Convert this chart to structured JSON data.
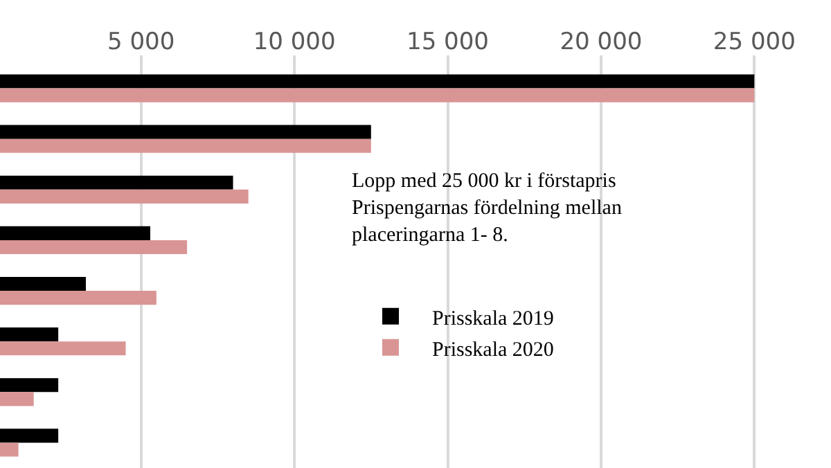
{
  "chart_data": {
    "type": "bar",
    "orientation": "horizontal",
    "categories": [
      null,
      null,
      null,
      null,
      null,
      null,
      null,
      null
    ],
    "series": [
      {
        "name": "Prisskala 2019",
        "color": "#000000",
        "values": [
          25000,
          12500,
          8000,
          5300,
          3200,
          2300,
          2300,
          2300
        ]
      },
      {
        "name": "Prisskala 2020",
        "color": "#d99594",
        "values": [
          25000,
          12500,
          8500,
          6500,
          5500,
          4500,
          1500,
          1000
        ]
      }
    ],
    "xlim": [
      400,
      27500
    ],
    "xticks": [
      {
        "value": 5000,
        "label": "5 000"
      },
      {
        "value": 10000,
        "label": "10 000"
      },
      {
        "value": 15000,
        "label": "15 000"
      },
      {
        "value": 20000,
        "label": "20 000"
      },
      {
        "value": 25000,
        "label": "25 000"
      }
    ],
    "annotations": [
      "Lopp med 25 000 kr i förstapris\nPrispengarnas fördelning mellan\nplaceringarna 1- 8."
    ],
    "grid": "x",
    "legend": "right",
    "tick_labels": "x"
  }
}
